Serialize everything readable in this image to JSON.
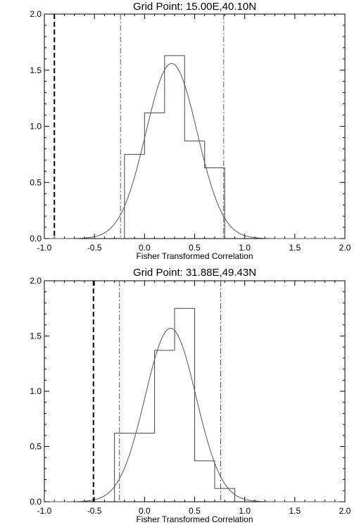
{
  "chart_data": [
    {
      "type": "histogram",
      "title": "Grid Point: 15.00E,40.10N",
      "xlabel": "Fisher Transformed Correlation",
      "ylabel": "",
      "xlim": [
        -1.0,
        2.0
      ],
      "ylim": [
        0.0,
        2.0
      ],
      "xticks": [
        "-1.0",
        "-0.5",
        "0.0",
        "0.5",
        "1.0",
        "1.5",
        "2.0"
      ],
      "yticks": [
        "0.0",
        "0.5",
        "1.0",
        "1.5",
        "2.0"
      ],
      "histogram": {
        "bin_edges": [
          -0.2,
          0.0,
          0.2,
          0.4,
          0.6,
          0.8
        ],
        "values": [
          0.75,
          1.12,
          1.63,
          0.87,
          0.63
        ]
      },
      "fitted_curve": {
        "type": "normal",
        "mean": 0.27,
        "peak": 1.56
      },
      "vertical_lines": [
        {
          "x": -0.9,
          "style": "dashed"
        },
        {
          "x": -0.24,
          "style": "dash-dot"
        },
        {
          "x": 0.79,
          "style": "dash-dot"
        }
      ]
    },
    {
      "type": "histogram",
      "title": "Grid Point: 31.88E,49.43N",
      "xlabel": "Fisher Transformed Correlation",
      "ylabel": "",
      "xlim": [
        -1.0,
        2.0
      ],
      "ylim": [
        0.0,
        2.0
      ],
      "xticks": [
        "-1.0",
        "-0.5",
        "0.0",
        "0.5",
        "1.0",
        "1.5",
        "2.0"
      ],
      "yticks": [
        "0.0",
        "0.5",
        "1.0",
        "1.5",
        "2.0"
      ],
      "histogram": {
        "bin_edges": [
          -0.3,
          0.1,
          0.3,
          0.5,
          0.7,
          0.9
        ],
        "values": [
          0.62,
          1.37,
          1.75,
          0.37,
          0.12
        ]
      },
      "fitted_curve": {
        "type": "normal",
        "mean": 0.26,
        "peak": 1.57
      },
      "vertical_lines": [
        {
          "x": -0.51,
          "style": "dashed"
        },
        {
          "x": -0.25,
          "style": "dash-dot"
        },
        {
          "x": 0.76,
          "style": "dash-dot"
        }
      ]
    }
  ]
}
